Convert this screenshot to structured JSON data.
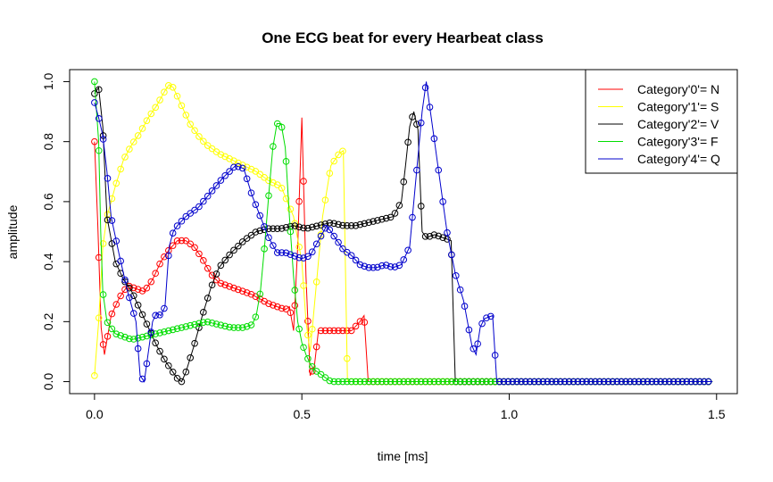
{
  "chart_data": {
    "type": "line",
    "title": "One ECG beat for every Hearbeat class",
    "xlabel": "time [ms]",
    "ylabel": "amplitude",
    "xlim": [
      -0.06,
      1.55
    ],
    "ylim": [
      -0.04,
      1.04
    ],
    "x_ticks": [
      0.0,
      0.5,
      1.0,
      1.5
    ],
    "x_tick_labels": [
      "0.0",
      "0.5",
      "1.0",
      "1.5"
    ],
    "y_ticks": [
      0.0,
      0.2,
      0.4,
      0.6,
      0.8,
      1.0
    ],
    "y_tick_labels": [
      "0.0",
      "0.2",
      "0.4",
      "0.6",
      "0.8",
      "1.0"
    ],
    "grid": false,
    "legend_position": "top-right",
    "markers": "open-circle",
    "series": [
      {
        "name": "Category'0'= N",
        "color": "#ff0000",
        "x": [
          0.0,
          0.008,
          0.016,
          0.024,
          0.04,
          0.06,
          0.08,
          0.1,
          0.12,
          0.14,
          0.16,
          0.18,
          0.2,
          0.22,
          0.24,
          0.26,
          0.28,
          0.3,
          0.34,
          0.38,
          0.42,
          0.46,
          0.47,
          0.48,
          0.49,
          0.5,
          0.51,
          0.52,
          0.53,
          0.54,
          0.56,
          0.6,
          0.62,
          0.64,
          0.65,
          0.66,
          0.7,
          1.49
        ],
        "y": [
          0.8,
          0.52,
          0.18,
          0.09,
          0.22,
          0.28,
          0.32,
          0.31,
          0.3,
          0.34,
          0.4,
          0.44,
          0.47,
          0.47,
          0.45,
          0.41,
          0.36,
          0.33,
          0.31,
          0.29,
          0.26,
          0.24,
          0.25,
          0.17,
          0.45,
          0.88,
          0.35,
          0.02,
          0.05,
          0.17,
          0.17,
          0.17,
          0.17,
          0.2,
          0.22,
          0.0,
          0.0,
          0.0
        ]
      },
      {
        "name": "Category'1'= S",
        "color": "#ffff00",
        "x": [
          0.0,
          0.01,
          0.02,
          0.03,
          0.05,
          0.07,
          0.09,
          0.11,
          0.13,
          0.15,
          0.17,
          0.18,
          0.19,
          0.21,
          0.23,
          0.25,
          0.27,
          0.3,
          0.33,
          0.36,
          0.39,
          0.42,
          0.45,
          0.48,
          0.5,
          0.51,
          0.52,
          0.53,
          0.55,
          0.57,
          0.59,
          0.6,
          0.61,
          0.62,
          0.7,
          1.49
        ],
        "y": [
          0.02,
          0.2,
          0.45,
          0.55,
          0.65,
          0.74,
          0.79,
          0.83,
          0.88,
          0.92,
          0.97,
          0.99,
          0.98,
          0.92,
          0.86,
          0.82,
          0.79,
          0.76,
          0.74,
          0.72,
          0.7,
          0.67,
          0.65,
          0.55,
          0.4,
          0.2,
          0.1,
          0.25,
          0.55,
          0.72,
          0.76,
          0.77,
          0.0,
          0.0,
          0.0,
          0.0
        ]
      },
      {
        "name": "Category'2'= V",
        "color": "#000000",
        "x": [
          0.0,
          0.01,
          0.02,
          0.03,
          0.05,
          0.07,
          0.09,
          0.11,
          0.13,
          0.15,
          0.17,
          0.19,
          0.2,
          0.21,
          0.22,
          0.24,
          0.26,
          0.28,
          0.3,
          0.33,
          0.36,
          0.39,
          0.42,
          0.45,
          0.48,
          0.51,
          0.54,
          0.57,
          0.6,
          0.63,
          0.66,
          0.69,
          0.72,
          0.74,
          0.75,
          0.76,
          0.77,
          0.78,
          0.79,
          0.8,
          0.82,
          0.84,
          0.86,
          0.87,
          0.9,
          1.49
        ],
        "y": [
          0.96,
          0.98,
          0.85,
          0.55,
          0.4,
          0.34,
          0.3,
          0.24,
          0.18,
          0.12,
          0.07,
          0.03,
          0.01,
          0.0,
          0.03,
          0.12,
          0.22,
          0.31,
          0.38,
          0.43,
          0.47,
          0.5,
          0.51,
          0.51,
          0.52,
          0.51,
          0.52,
          0.53,
          0.52,
          0.52,
          0.53,
          0.54,
          0.55,
          0.6,
          0.72,
          0.85,
          0.9,
          0.84,
          0.5,
          0.48,
          0.49,
          0.48,
          0.47,
          0.0,
          0.0,
          0.0
        ]
      },
      {
        "name": "Category'3'= F",
        "color": "#00dd00",
        "x": [
          0.0,
          0.01,
          0.015,
          0.02,
          0.03,
          0.05,
          0.07,
          0.09,
          0.12,
          0.15,
          0.18,
          0.21,
          0.24,
          0.27,
          0.3,
          0.33,
          0.36,
          0.38,
          0.39,
          0.4,
          0.41,
          0.42,
          0.43,
          0.44,
          0.45,
          0.46,
          0.47,
          0.48,
          0.49,
          0.5,
          0.51,
          0.52,
          0.53,
          0.54,
          0.55,
          0.56,
          0.57,
          0.6,
          0.65,
          0.7,
          0.8,
          0.9,
          0.97,
          1.0,
          1.49
        ],
        "y": [
          1.0,
          0.8,
          0.5,
          0.3,
          0.2,
          0.16,
          0.15,
          0.14,
          0.15,
          0.16,
          0.17,
          0.18,
          0.19,
          0.2,
          0.19,
          0.18,
          0.18,
          0.19,
          0.22,
          0.3,
          0.45,
          0.62,
          0.78,
          0.86,
          0.86,
          0.78,
          0.55,
          0.35,
          0.2,
          0.13,
          0.09,
          0.06,
          0.04,
          0.03,
          0.02,
          0.01,
          0.0,
          0.0,
          0.0,
          0.0,
          0.0,
          0.0,
          0.0,
          0.0,
          0.0
        ]
      },
      {
        "name": "Category'4'= Q",
        "color": "#0000cc",
        "x": [
          0.0,
          0.01,
          0.02,
          0.03,
          0.04,
          0.06,
          0.08,
          0.1,
          0.11,
          0.12,
          0.13,
          0.14,
          0.15,
          0.16,
          0.17,
          0.18,
          0.19,
          0.2,
          0.22,
          0.25,
          0.28,
          0.31,
          0.34,
          0.36,
          0.38,
          0.4,
          0.42,
          0.44,
          0.46,
          0.48,
          0.5,
          0.52,
          0.54,
          0.56,
          0.58,
          0.6,
          0.62,
          0.64,
          0.66,
          0.68,
          0.7,
          0.72,
          0.74,
          0.76,
          0.78,
          0.79,
          0.8,
          0.81,
          0.83,
          0.85,
          0.87,
          0.89,
          0.91,
          0.92,
          0.93,
          0.94,
          0.96,
          0.97,
          1.0,
          1.49
        ],
        "y": [
          0.93,
          0.88,
          0.82,
          0.7,
          0.55,
          0.42,
          0.3,
          0.2,
          0.02,
          0.0,
          0.1,
          0.2,
          0.23,
          0.22,
          0.25,
          0.45,
          0.5,
          0.52,
          0.55,
          0.58,
          0.63,
          0.68,
          0.72,
          0.71,
          0.62,
          0.55,
          0.48,
          0.43,
          0.43,
          0.42,
          0.41,
          0.42,
          0.47,
          0.52,
          0.48,
          0.44,
          0.42,
          0.39,
          0.38,
          0.38,
          0.39,
          0.38,
          0.39,
          0.45,
          0.75,
          0.9,
          1.0,
          0.9,
          0.7,
          0.5,
          0.36,
          0.27,
          0.12,
          0.09,
          0.18,
          0.21,
          0.22,
          0.0,
          0.0,
          0.0
        ]
      }
    ]
  }
}
